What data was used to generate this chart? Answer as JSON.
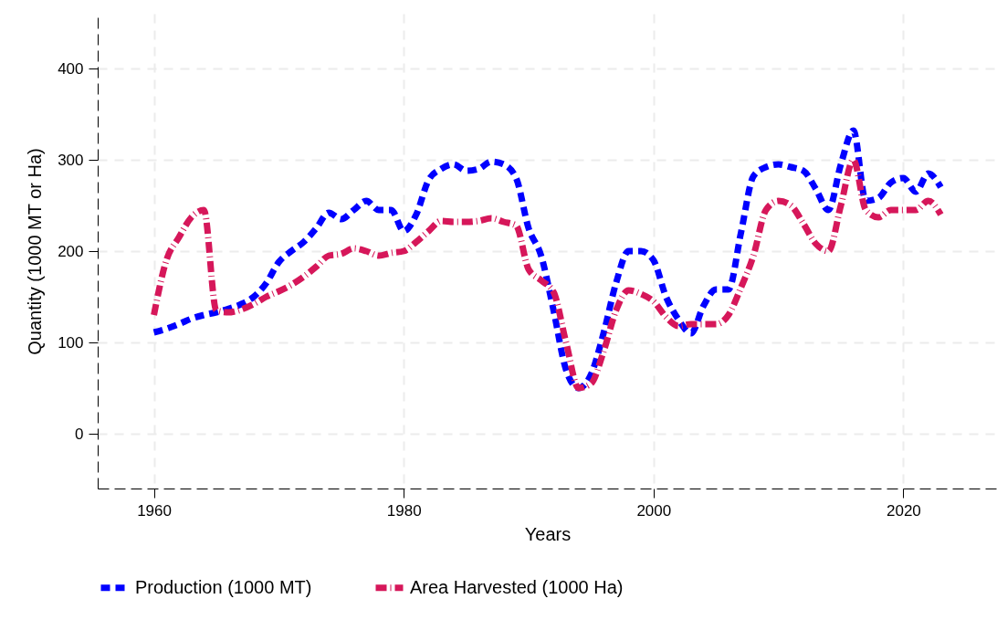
{
  "chart_data": {
    "type": "line",
    "xlabel": "Years",
    "ylabel": "Quantity (1000 MT or Ha)",
    "x": [
      1960,
      1961,
      1962,
      1963,
      1964,
      1965,
      1966,
      1967,
      1968,
      1969,
      1970,
      1971,
      1972,
      1973,
      1974,
      1975,
      1976,
      1977,
      1978,
      1979,
      1980,
      1981,
      1982,
      1983,
      1984,
      1985,
      1986,
      1987,
      1988,
      1989,
      1990,
      1991,
      1992,
      1993,
      1994,
      1995,
      1996,
      1997,
      1998,
      1999,
      2000,
      2001,
      2002,
      2003,
      2004,
      2005,
      2006,
      2007,
      2008,
      2009,
      2010,
      2011,
      2012,
      2013,
      2014,
      2015,
      2016,
      2017,
      2018,
      2019,
      2020,
      2021,
      2022,
      2023
    ],
    "series": [
      {
        "name": "Production  (1000 MT)",
        "color": "#0000ff",
        "line_style": "dashed",
        "values": [
          111,
          115,
          120,
          126,
          130,
          133,
          137,
          142,
          150,
          165,
          188,
          200,
          210,
          225,
          242,
          235,
          245,
          255,
          245,
          245,
          222,
          240,
          278,
          290,
          295,
          288,
          290,
          298,
          295,
          280,
          225,
          195,
          135,
          70,
          50,
          65,
          110,
          165,
          200,
          200,
          190,
          150,
          125,
          110,
          140,
          158,
          158,
          220,
          282,
          292,
          295,
          292,
          288,
          268,
          245,
          295,
          332,
          255,
          258,
          275,
          280,
          265,
          285,
          270
        ]
      },
      {
        "name": "Area Harvested (1000 Ha)",
        "color": "#d6175a",
        "line_style": "dashdot",
        "values": [
          130,
          190,
          215,
          237,
          245,
          135,
          133,
          136,
          142,
          150,
          156,
          163,
          172,
          183,
          195,
          197,
          203,
          200,
          195,
          198,
          200,
          210,
          222,
          233,
          232,
          232,
          233,
          236,
          232,
          228,
          180,
          168,
          155,
          100,
          50,
          55,
          90,
          135,
          157,
          153,
          145,
          128,
          118,
          120,
          120,
          120,
          130,
          160,
          195,
          245,
          255,
          250,
          230,
          208,
          200,
          250,
          300,
          245,
          237,
          245,
          245,
          245,
          255,
          240
        ]
      }
    ],
    "xlim": [
      1955.5,
      2027.5
    ],
    "xticks": [
      1960,
      1980,
      2000,
      2020
    ],
    "ylim": [
      -60,
      460
    ],
    "yticks": [
      0,
      100,
      200,
      300,
      400
    ],
    "grid": true,
    "legend": "bottom"
  }
}
